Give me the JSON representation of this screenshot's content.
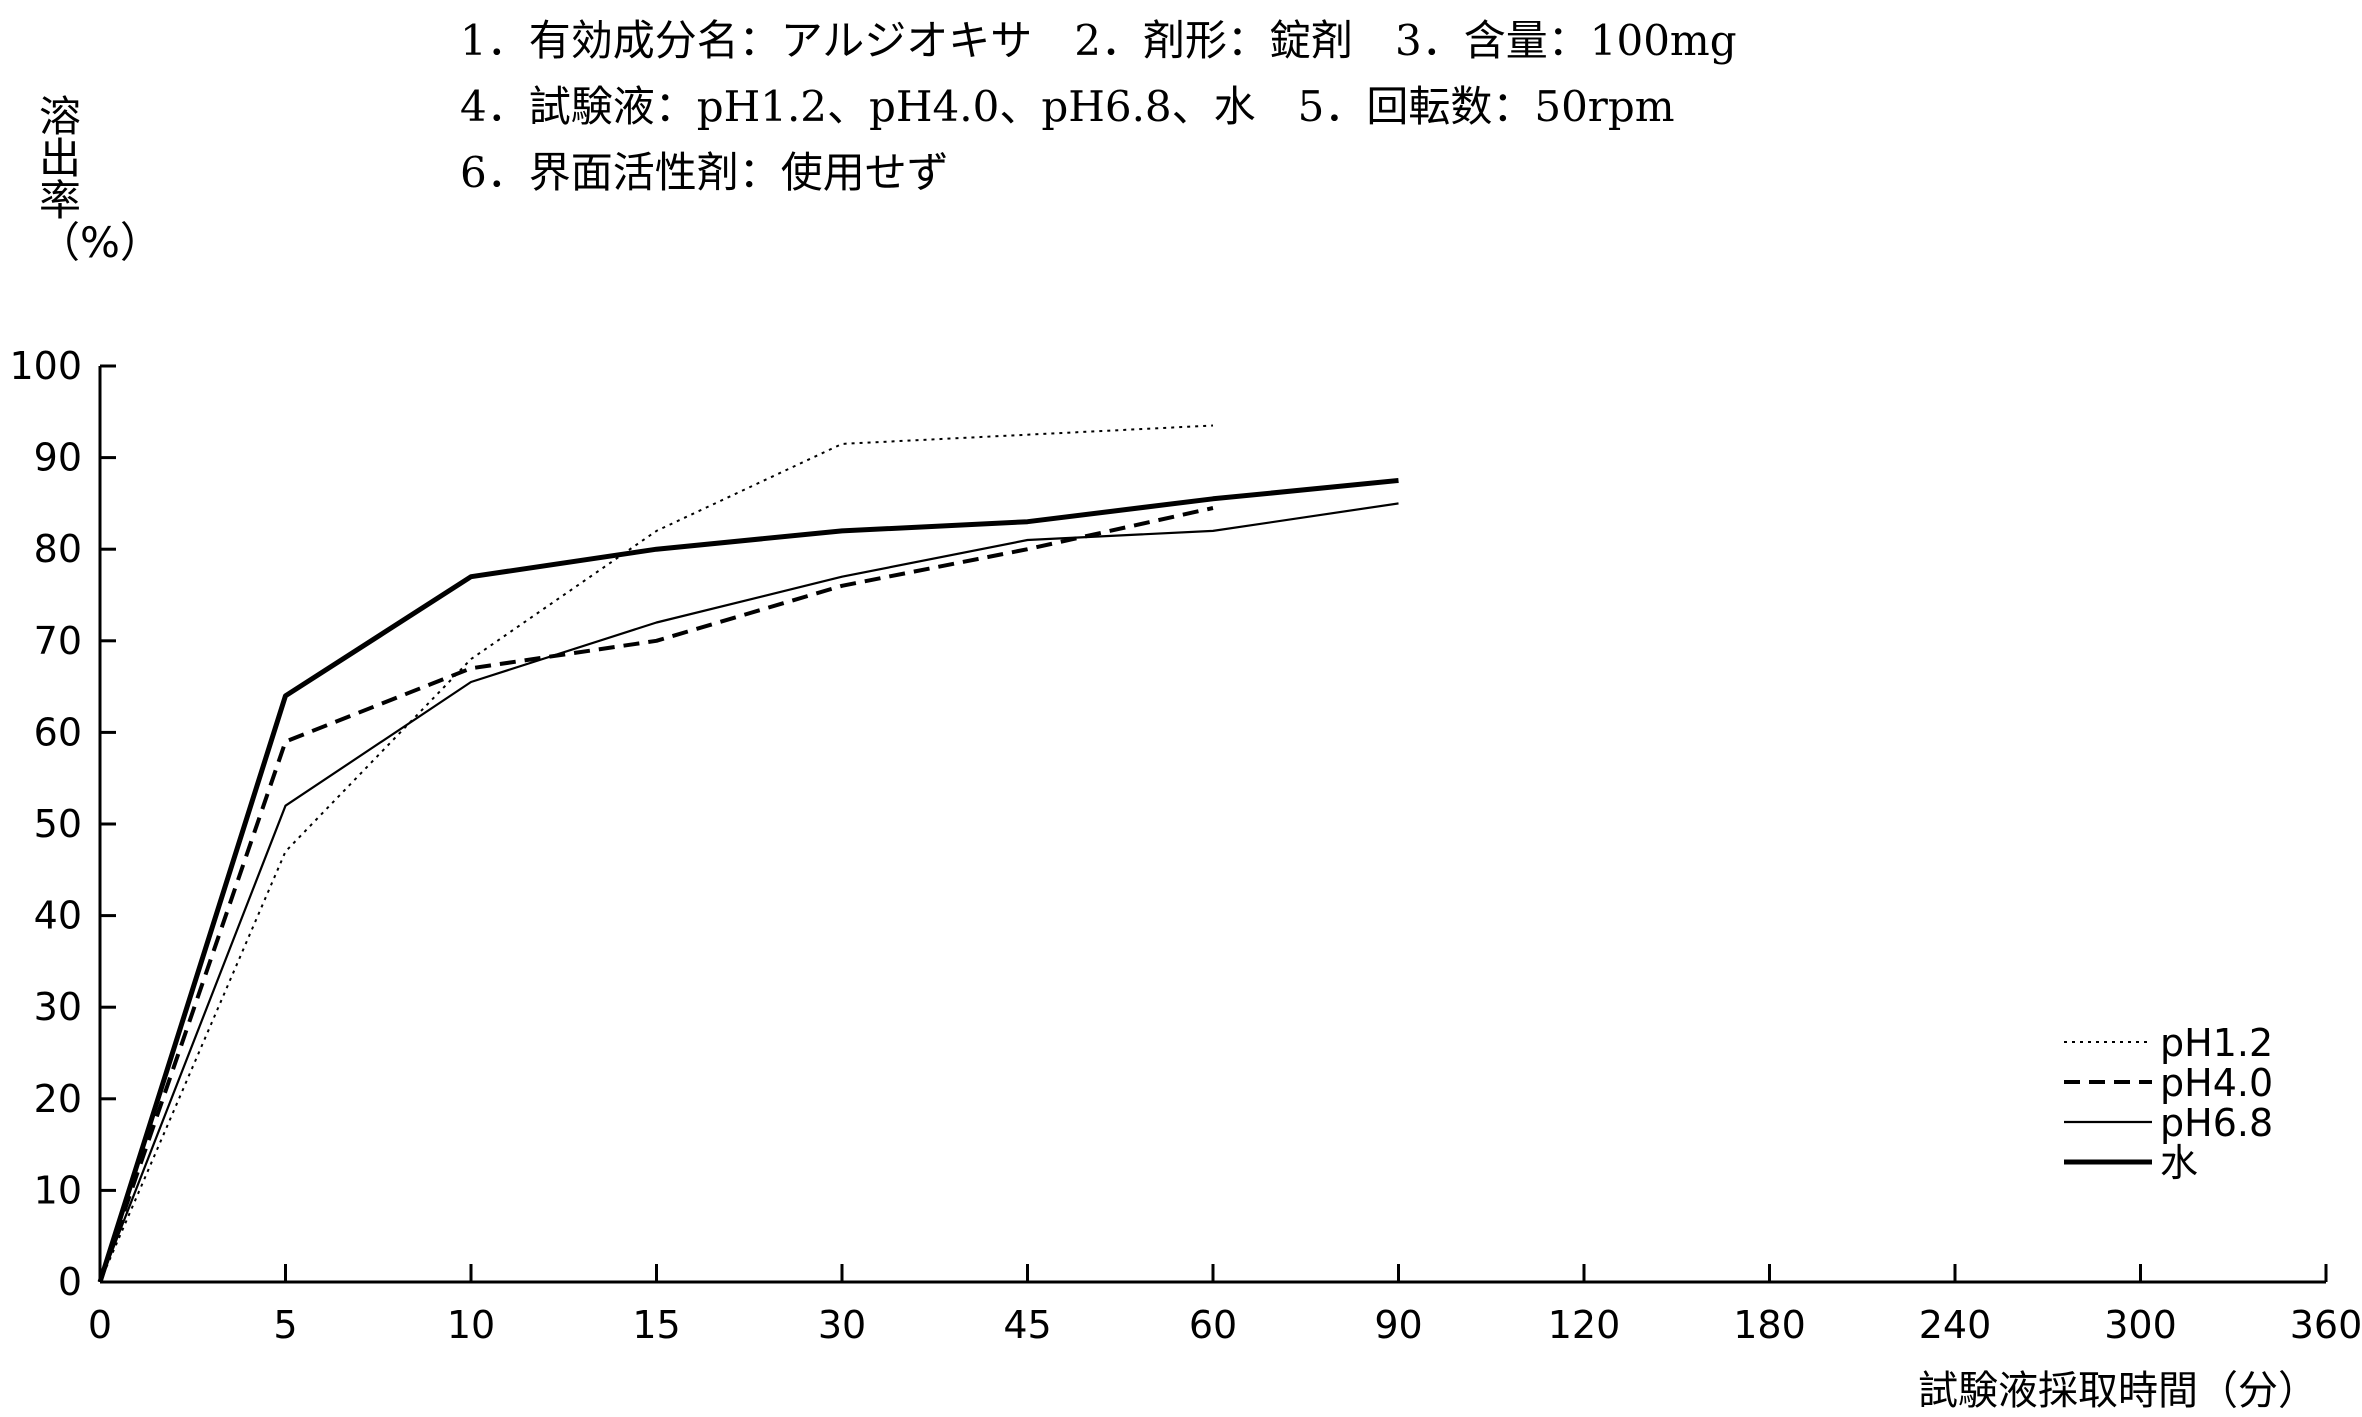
{
  "header": {
    "line1": "1．有効成分名：アルジオキサ　2．剤形：錠剤　3．含量：100mg",
    "line2": "4．試験液：pH1.2、pH4.0、pH6.8、水　5．回転数：50rpm",
    "line3": "6．界面活性剤：使用せず"
  },
  "chart_data": {
    "type": "line",
    "ylabel": "溶出率（%）",
    "xlabel": "試験液採取時間（分）",
    "x": [
      "0",
      "5",
      "10",
      "15",
      "30",
      "45",
      "60",
      "90",
      "120",
      "180",
      "240",
      "300",
      "360"
    ],
    "yticks": [
      "0",
      "10",
      "20",
      "30",
      "40",
      "50",
      "60",
      "70",
      "80",
      "90",
      "100"
    ],
    "ylim": [
      0,
      100
    ],
    "grid": false,
    "legend_position": "bottom-right",
    "series": [
      {
        "name": "pH1.2",
        "style": "dotted",
        "x": [
          0,
          5,
          10,
          15,
          30,
          60
        ],
        "values": [
          0,
          47,
          68,
          82,
          91.5,
          93.5
        ]
      },
      {
        "name": "pH4.0",
        "style": "dashed",
        "x": [
          0,
          5,
          10,
          15,
          30,
          45,
          60
        ],
        "values": [
          0,
          59,
          67,
          70,
          76,
          80,
          84.5
        ]
      },
      {
        "name": "pH6.8",
        "style": "thin",
        "x": [
          0,
          5,
          10,
          15,
          30,
          45,
          60,
          90
        ],
        "values": [
          0,
          52,
          65.5,
          72,
          77,
          81,
          82,
          85
        ]
      },
      {
        "name": "水",
        "style": "thick",
        "x": [
          0,
          5,
          10,
          15,
          30,
          45,
          60,
          90
        ],
        "values": [
          0,
          64,
          77,
          80,
          82,
          83,
          85.5,
          87.5
        ]
      }
    ]
  }
}
